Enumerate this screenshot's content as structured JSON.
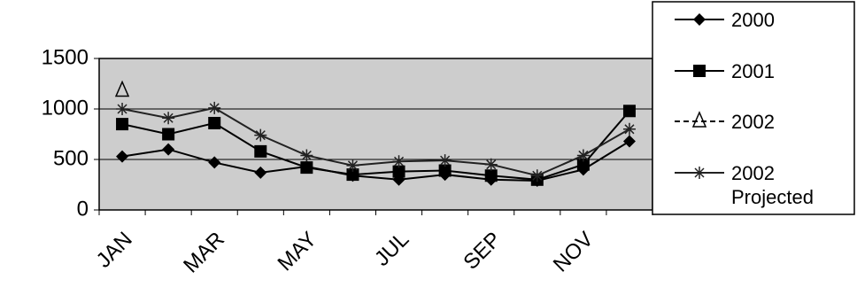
{
  "chart_data": {
    "type": "line",
    "categories": [
      "JAN",
      null,
      "MAR",
      null,
      "MAY",
      null,
      "JUL",
      null,
      "SEP",
      null,
      "NOV",
      null
    ],
    "series": [
      {
        "name": "2000",
        "color": "#000000",
        "marker": "diamond",
        "values": [
          530,
          600,
          470,
          370,
          430,
          340,
          300,
          350,
          300,
          290,
          400,
          680
        ]
      },
      {
        "name": "2001",
        "color": "#000000",
        "marker": "square",
        "values": [
          850,
          750,
          860,
          580,
          420,
          350,
          380,
          390,
          340,
          300,
          450,
          980
        ]
      },
      {
        "name": "2002",
        "color": "#000000",
        "marker": "triangle",
        "values": [
          1180,
          null,
          null,
          null,
          null,
          null,
          null,
          null,
          null,
          null,
          null,
          null
        ]
      },
      {
        "name": "2002 Projected",
        "color": "#222222",
        "marker": "star",
        "values": [
          1000,
          910,
          1010,
          740,
          540,
          440,
          480,
          490,
          450,
          340,
          540,
          800
        ]
      }
    ],
    "ylim": [
      0,
      1500
    ],
    "yticks": [
      0,
      500,
      1000,
      1500
    ],
    "grid": true
  }
}
